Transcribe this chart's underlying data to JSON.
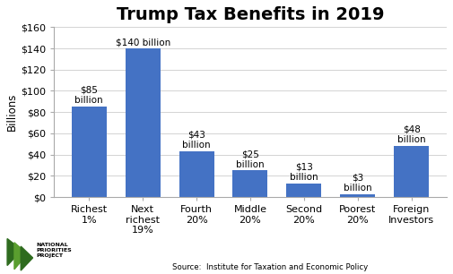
{
  "title": "Trump Tax Benefits in 2019",
  "categories": [
    "Richest\n1%",
    "Next\nrichest\n19%",
    "Fourth\n20%",
    "Middle\n20%",
    "Second\n20%",
    "Poorest\n20%",
    "Foreign\nInvestors"
  ],
  "values": [
    85,
    140,
    43,
    25,
    13,
    3,
    48
  ],
  "bar_labels": [
    "$85\nbillion",
    "$140 billion",
    "$43\nbillion",
    "$25\nbillion",
    "$13\nbillion",
    "$3\nbillion",
    "$48\nbillion"
  ],
  "bar_color": "#4472C4",
  "ylabel": "Billions",
  "ylim": [
    0,
    160
  ],
  "yticks": [
    0,
    20,
    40,
    60,
    80,
    100,
    120,
    140,
    160
  ],
  "ytick_labels": [
    "$0",
    "$20",
    "$40",
    "$60",
    "$80",
    "$100",
    "$120",
    "$140",
    "$160"
  ],
  "source_text": "Source:  Institute for Taxation and Economic Policy",
  "title_fontsize": 14,
  "axis_fontsize": 8,
  "label_fontsize": 8,
  "background_color": "#ffffff",
  "logo_text": "NATIONAL\nPRIORITIES\nPROJECT",
  "logo_color1": "#2e6b1e",
  "logo_color2": "#5a9e2f"
}
